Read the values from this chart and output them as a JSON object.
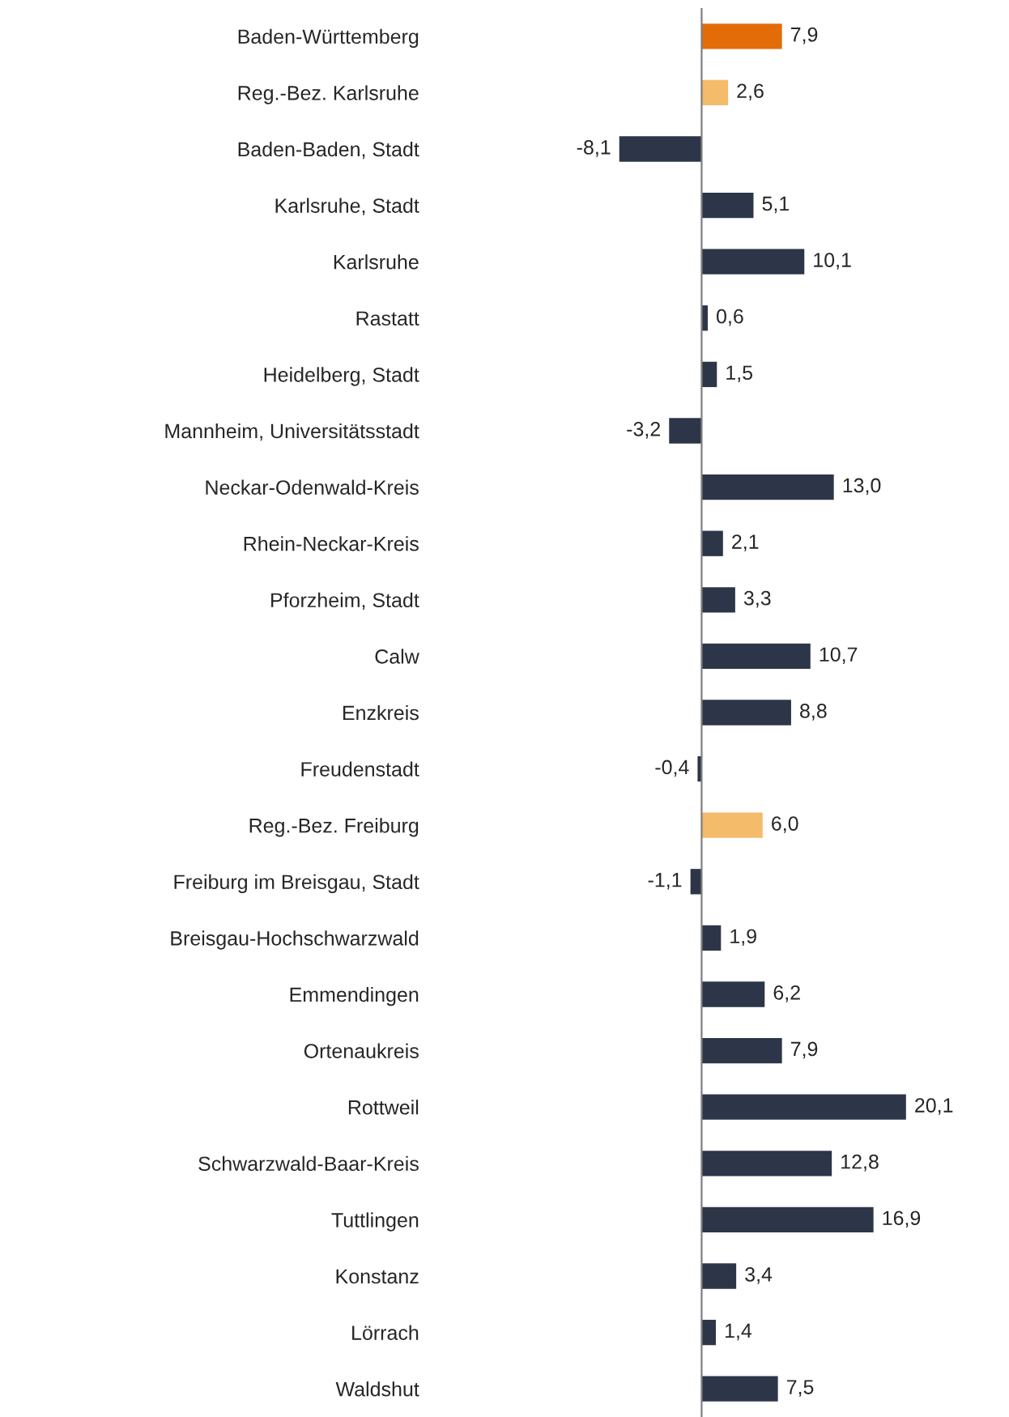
{
  "chart_data": {
    "type": "bar",
    "orientation": "horizontal",
    "categories": [
      "Baden-Württemberg",
      "Reg.-Bez. Karlsruhe",
      "Baden-Baden, Stadt",
      "Karlsruhe, Stadt",
      "Karlsruhe",
      "Rastatt",
      "Heidelberg, Stadt",
      "Mannheim, Universitätsstadt",
      "Neckar-Odenwald-Kreis",
      "Rhein-Neckar-Kreis",
      "Pforzheim, Stadt",
      "Calw",
      "Enzkreis",
      "Freudenstadt",
      "Reg.-Bez. Freiburg",
      "Freiburg im Breisgau, Stadt",
      "Breisgau-Hochschwarzwald",
      "Emmendingen",
      "Ortenaukreis",
      "Rottweil",
      "Schwarzwald-Baar-Kreis",
      "Tuttlingen",
      "Konstanz",
      "Lörrach",
      "Waldshut"
    ],
    "values": [
      7.9,
      2.6,
      -8.1,
      5.1,
      10.1,
      0.6,
      1.5,
      -3.2,
      13.0,
      2.1,
      3.3,
      10.7,
      8.8,
      -0.4,
      6.0,
      -1.1,
      1.9,
      6.2,
      7.9,
      20.1,
      12.8,
      16.9,
      3.4,
      1.4,
      7.5
    ],
    "value_labels": [
      "7,9",
      "2,6",
      "-8,1",
      "5,1",
      "10,1",
      "0,6",
      "1,5",
      "-3,2",
      "13,0",
      "2,1",
      "3,3",
      "10,7",
      "8,8",
      "-0,4",
      "6,0",
      "-1,1",
      "1,9",
      "6,2",
      "7,9",
      "20,1",
      "12,8",
      "16,9",
      "3,4",
      "1,4",
      "7,5"
    ],
    "colors": [
      "#e36c09",
      "#f3bb6a",
      "#2d3548",
      "#2d3548",
      "#2d3548",
      "#2d3548",
      "#2d3548",
      "#2d3548",
      "#2d3548",
      "#2d3548",
      "#2d3548",
      "#2d3548",
      "#2d3548",
      "#2d3548",
      "#f3bb6a",
      "#2d3548",
      "#2d3548",
      "#2d3548",
      "#2d3548",
      "#2d3548",
      "#2d3548",
      "#2d3548",
      "#2d3548",
      "#2d3548",
      "#2d3548"
    ],
    "tick_labels": "y",
    "grid": false,
    "legend": false
  }
}
